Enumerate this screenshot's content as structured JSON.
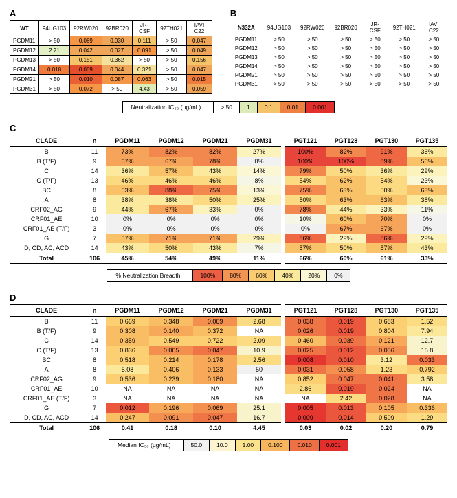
{
  "panelA": {
    "label": "A",
    "corner": "WT",
    "cols": [
      "94UG103",
      "92RW020",
      "92BR020",
      "JR-CSF",
      "92TH021",
      "IAVI C22"
    ],
    "rows": [
      "PGDM11",
      "PGDM12",
      "PGDM13",
      "PGDM14",
      "PGDM21",
      "PGDM31"
    ],
    "cells": [
      [
        "> 50",
        "0.069",
        "0.030",
        "0.111",
        "> 50",
        "0.047"
      ],
      [
        "2.21",
        "0.042",
        "0.027",
        "0.091",
        "> 50",
        "0.049"
      ],
      [
        "> 50",
        "0.151",
        "0.362",
        "> 50",
        "> 50",
        "0.156"
      ],
      [
        "0.018",
        "0.009",
        "0.044",
        "0.321",
        "> 50",
        "0.047"
      ],
      [
        "> 50",
        "0.010",
        "0.087",
        "0.063",
        "> 50",
        "0.015"
      ],
      [
        "> 50",
        "0.072",
        "> 50",
        "4.43",
        "> 50",
        "0.059"
      ]
    ],
    "cellColors": [
      [
        "#ffffff",
        "#f59646",
        "#efa658",
        "#f5c36a",
        "#ffffff",
        "#efa658"
      ],
      [
        "#e3efc4",
        "#efa658",
        "#efa658",
        "#f59646",
        "#ffffff",
        "#efa658"
      ],
      [
        "#ffffff",
        "#f5c36a",
        "#f5e19e",
        "#ffffff",
        "#ffffff",
        "#f5c36a"
      ],
      [
        "#f07c3b",
        "#e54e2a",
        "#efa658",
        "#f5e19e",
        "#ffffff",
        "#efa658"
      ],
      [
        "#ffffff",
        "#e96035",
        "#f59646",
        "#f59646",
        "#ffffff",
        "#f07c3b"
      ],
      [
        "#ffffff",
        "#f59646",
        "#ffffff",
        "#dcebb7",
        "#ffffff",
        "#efa658"
      ]
    ]
  },
  "panelB": {
    "label": "B",
    "corner": "N332A",
    "cols": [
      "94UG103",
      "92RW020",
      "92BR020",
      "JR-CSF",
      "92TH021",
      "IAVI C22"
    ],
    "rows": [
      "PGDM11",
      "PGDM12",
      "PGDM13",
      "PGDM14",
      "PGDM21",
      "PGDM31"
    ],
    "cells": [
      [
        "> 50",
        "> 50",
        "> 50",
        "> 50",
        "> 50",
        "> 50"
      ],
      [
        "> 50",
        "> 50",
        "> 50",
        "> 50",
        "> 50",
        "> 50"
      ],
      [
        "> 50",
        "> 50",
        "> 50",
        "> 50",
        "> 50",
        "> 50"
      ],
      [
        "> 50",
        "> 50",
        "> 50",
        "> 50",
        "> 50",
        "> 50"
      ],
      [
        "> 50",
        "> 50",
        "> 50",
        "> 50",
        "> 50",
        "> 50"
      ],
      [
        "> 50",
        "> 50",
        "> 50",
        "> 50",
        "> 50",
        "> 50"
      ]
    ]
  },
  "legendAB": {
    "label": "Neutralization IC₅₀ (μg/mL)",
    "items": [
      {
        "text": "> 50",
        "color": "#ffffff"
      },
      {
        "text": "1",
        "color": "#dcebb7"
      },
      {
        "text": "0.1",
        "color": "#f5c36a"
      },
      {
        "text": "0.01",
        "color": "#ee8042"
      },
      {
        "text": "0.001",
        "color": "#e32f2c"
      }
    ]
  },
  "panelC": {
    "label": "C",
    "cols_left": [
      "CLADE",
      "n"
    ],
    "cols_a": [
      "PGDM11",
      "PGDM12",
      "PGDM21",
      "PGDM31"
    ],
    "cols_b": [
      "PGT121",
      "PGT128",
      "PGT130",
      "PGT135"
    ],
    "rows": [
      {
        "clade": "B",
        "n": "11",
        "a": [
          "73%",
          "82%",
          "82%",
          "27%"
        ],
        "b": [
          "100%",
          "82%",
          "91%",
          "36%"
        ]
      },
      {
        "clade": "B (T/F)",
        "n": "9",
        "a": [
          "67%",
          "67%",
          "78%",
          "0%"
        ],
        "b": [
          "100%",
          "100%",
          "89%",
          "56%"
        ]
      },
      {
        "clade": "C",
        "n": "14",
        "a": [
          "36%",
          "57%",
          "43%",
          "14%"
        ],
        "b": [
          "79%",
          "50%",
          "36%",
          "29%"
        ]
      },
      {
        "clade": "C (T/F)",
        "n": "13",
        "a": [
          "46%",
          "46%",
          "46%",
          "8%"
        ],
        "b": [
          "54%",
          "62%",
          "54%",
          "23%"
        ]
      },
      {
        "clade": "BC",
        "n": "8",
        "a": [
          "63%",
          "88%",
          "75%",
          "13%"
        ],
        "b": [
          "75%",
          "63%",
          "50%",
          "63%"
        ]
      },
      {
        "clade": "A",
        "n": "8",
        "a": [
          "38%",
          "38%",
          "50%",
          "25%"
        ],
        "b": [
          "50%",
          "63%",
          "63%",
          "38%"
        ]
      },
      {
        "clade": "CRF02_AG",
        "n": "9",
        "a": [
          "44%",
          "67%",
          "33%",
          "0%"
        ],
        "b": [
          "78%",
          "44%",
          "33%",
          "11%"
        ]
      },
      {
        "clade": "CRF01_AE",
        "n": "10",
        "a": [
          "0%",
          "0%",
          "0%",
          "0%"
        ],
        "b": [
          "10%",
          "60%",
          "70%",
          "0%"
        ]
      },
      {
        "clade": "CRF01_AE (T/F)",
        "n": "3",
        "a": [
          "0%",
          "0%",
          "0%",
          "0%"
        ],
        "b": [
          "0%",
          "67%",
          "67%",
          "0%"
        ]
      },
      {
        "clade": "G",
        "n": "7",
        "a": [
          "57%",
          "71%",
          "71%",
          "29%"
        ],
        "b": [
          "86%",
          "29%",
          "86%",
          "29%"
        ]
      },
      {
        "clade": "D, CD, AC, ACD",
        "n": "14",
        "a": [
          "43%",
          "50%",
          "43%",
          "7%"
        ],
        "b": [
          "57%",
          "50%",
          "57%",
          "43%"
        ]
      }
    ],
    "total": {
      "clade": "Total",
      "n": "106",
      "a": [
        "45%",
        "54%",
        "49%",
        "11%"
      ],
      "b": [
        "66%",
        "60%",
        "61%",
        "33%"
      ]
    }
  },
  "legendC": {
    "label": "% Neutralization Breadth",
    "items": [
      {
        "text": "100%",
        "color": "#ec5f44"
      },
      {
        "text": "80%",
        "color": "#f49453"
      },
      {
        "text": "60%",
        "color": "#facb70"
      },
      {
        "text": "40%",
        "color": "#fbe99b"
      },
      {
        "text": "20%",
        "color": "#fbf6d3"
      },
      {
        "text": "0%",
        "color": "#f1f1f1"
      }
    ]
  },
  "panelD": {
    "label": "D",
    "cols_left": [
      "CLADE",
      "n"
    ],
    "cols_a": [
      "PGDM11",
      "PGDM12",
      "PGDM21",
      "PGDM31"
    ],
    "cols_b": [
      "PGT121",
      "PGT128",
      "PGT130",
      "PGT135"
    ],
    "rows": [
      {
        "clade": "B",
        "n": "11",
        "a": [
          "0.669",
          "0.348",
          "0.069",
          "2.68"
        ],
        "b": [
          "0.038",
          "0.019",
          "0.683",
          "1.52"
        ]
      },
      {
        "clade": "B (T/F)",
        "n": "9",
        "a": [
          "0.308",
          "0.140",
          "0.372",
          "NA"
        ],
        "b": [
          "0.026",
          "0.019",
          "0.804",
          "7.94"
        ]
      },
      {
        "clade": "C",
        "n": "14",
        "a": [
          "0.359",
          "0.549",
          "0.722",
          "2.09"
        ],
        "b": [
          "0.460",
          "0.039",
          "0.121",
          "12.7"
        ]
      },
      {
        "clade": "C (T/F)",
        "n": "13",
        "a": [
          "0.836",
          "0.065",
          "0.047",
          "10.9"
        ],
        "b": [
          "0.025",
          "0.012",
          "0.056",
          "15.8"
        ]
      },
      {
        "clade": "BC",
        "n": "8",
        "a": [
          "0.518",
          "0.214",
          "0.178",
          "2.56"
        ],
        "b": [
          "0.008",
          "0.010",
          "3.12",
          "0.033"
        ]
      },
      {
        "clade": "A",
        "n": "8",
        "a": [
          "5.08",
          "0.406",
          "0.133",
          "50"
        ],
        "b": [
          "0.031",
          "0.058",
          "1.23",
          "0.792"
        ]
      },
      {
        "clade": "CRF02_AG",
        "n": "9",
        "a": [
          "0.536",
          "0.239",
          "0.180",
          "NA"
        ],
        "b": [
          "0.852",
          "0.047",
          "0.041",
          "3.58"
        ]
      },
      {
        "clade": "CRF01_AE",
        "n": "10",
        "a": [
          "NA",
          "NA",
          "NA",
          "NA"
        ],
        "b": [
          "2.86",
          "0.019",
          "0.024",
          "NA"
        ]
      },
      {
        "clade": "CRF01_AE (T/F)",
        "n": "3",
        "a": [
          "NA",
          "NA",
          "NA",
          "NA"
        ],
        "b": [
          "NA",
          "2.42",
          "0.028",
          "NA"
        ]
      },
      {
        "clade": "G",
        "n": "7",
        "a": [
          "0.012",
          "0.196",
          "0.069",
          "25.1"
        ],
        "b": [
          "0.005",
          "0.013",
          "0.105",
          "0.336"
        ]
      },
      {
        "clade": "D, CD, AC, ACD",
        "n": "14",
        "a": [
          "0.247",
          "0.091",
          "0.047",
          "16.7"
        ],
        "b": [
          "0.009",
          "0.014",
          "0.509",
          "1.29"
        ]
      }
    ],
    "total": {
      "clade": "Total",
      "n": "106",
      "a": [
        "0.41",
        "0.18",
        "0.10",
        "4.45"
      ],
      "b": [
        "0.03",
        "0.02",
        "0.20",
        "0.79"
      ]
    }
  },
  "legendD": {
    "label": "Median IC₅₀ (μg/mL)",
    "items": [
      {
        "text": "50.0",
        "color": "#f1f1f1"
      },
      {
        "text": "10.0",
        "color": "#fbf4ce"
      },
      {
        "text": "1.00",
        "color": "#fbe28c"
      },
      {
        "text": "0.100",
        "color": "#f8b560"
      },
      {
        "text": "0.010",
        "color": "#ee7146"
      },
      {
        "text": "0.001",
        "color": "#e32f2c"
      }
    ]
  }
}
